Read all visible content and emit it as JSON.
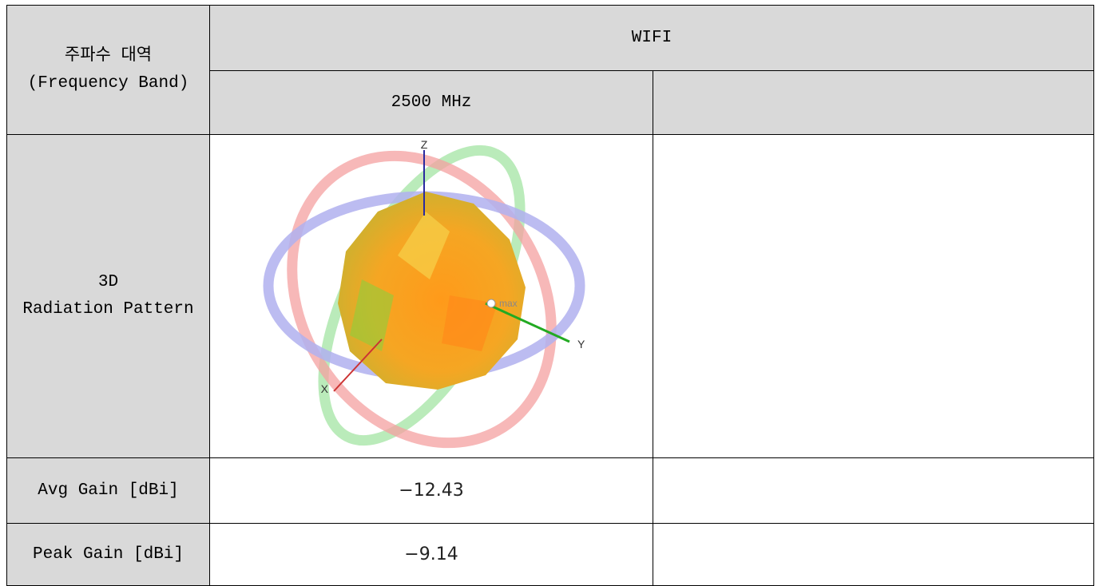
{
  "table": {
    "header": {
      "label_lines": [
        "주파수 대역",
        "(Frequency Band)"
      ],
      "group": "WIFI",
      "frequencies": [
        "2500 MHz"
      ]
    },
    "pattern": {
      "label_lines": [
        "3D",
        "Radiation Pattern"
      ],
      "axes": {
        "z": "Z",
        "y": "Y",
        "x": "X"
      },
      "marker": "max"
    },
    "rows": [
      [
        "Avg Gain [dBi]",
        "−12.43"
      ],
      [
        "Peak Gain [dBi]",
        "−9.14"
      ]
    ]
  }
}
